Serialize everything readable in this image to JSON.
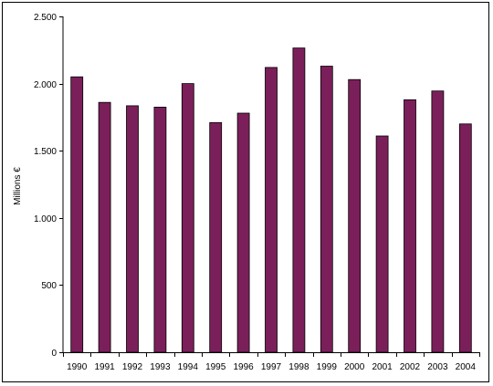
{
  "chart_data": {
    "type": "bar",
    "title": "",
    "xlabel": "",
    "ylabel": "Millions €",
    "categories": [
      "1990",
      "1991",
      "1992",
      "1993",
      "1994",
      "1995",
      "1996",
      "1997",
      "1998",
      "1999",
      "2000",
      "2001",
      "2002",
      "2003",
      "2004"
    ],
    "values": [
      2050,
      1860,
      1835,
      1825,
      2000,
      1710,
      1780,
      2120,
      2265,
      2130,
      2030,
      1610,
      1880,
      1945,
      1700
    ],
    "ylim": [
      0,
      2500
    ],
    "yticks": [
      0,
      500,
      1000,
      1500,
      2000,
      2500
    ],
    "ytick_labels": [
      "0",
      "500",
      "1.000",
      "1.500",
      "2.000",
      "2.500"
    ],
    "grid": false,
    "legend": "none",
    "colors": {
      "bar_fill": "#7b1f5a",
      "bar_stroke": "#000000",
      "axis": "#000000"
    }
  }
}
